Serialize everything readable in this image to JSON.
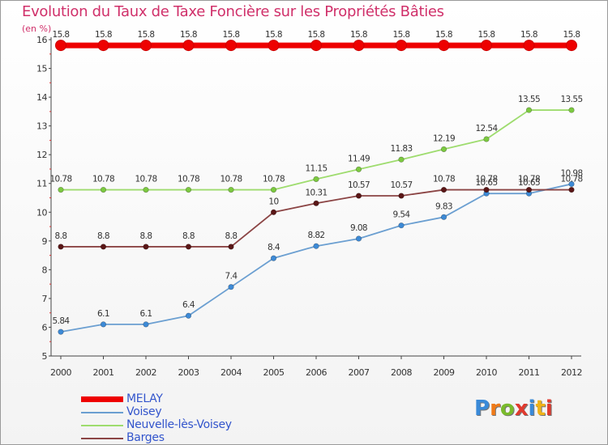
{
  "header": {
    "title": "Evolution du Taux de Taxe Foncière sur les Propriétés Bâties",
    "unit": "(en %)"
  },
  "logo": {
    "text": "Proxiti",
    "colors": [
      "#3a8ad8",
      "#f07a18",
      "#7abb2c",
      "#e03a2e",
      "#3a8ad8",
      "#f0b318",
      "#e03a2e"
    ]
  },
  "chart_data": {
    "type": "line",
    "title": "Evolution du Taux de Taxe Foncière sur les Propriétés Bâties",
    "ylabel": "(en %)",
    "xlabel": "",
    "x": [
      "2000",
      "2001",
      "2002",
      "2003",
      "2004",
      "2005",
      "2006",
      "2007",
      "2008",
      "2009",
      "2010",
      "2011",
      "2012"
    ],
    "ylim": [
      5,
      16
    ],
    "yticks": [
      "5",
      "6",
      "7",
      "8",
      "9",
      "10",
      "11",
      "12",
      "13",
      "14",
      "15",
      "16"
    ],
    "grid": false,
    "legend_position": "bottom-left",
    "series": [
      {
        "name": "MELAY",
        "color": "#ee0000",
        "marker_fill": "#ee0000",
        "bold": true,
        "values": [
          15.8,
          15.8,
          15.8,
          15.8,
          15.8,
          15.8,
          15.8,
          15.8,
          15.8,
          15.8,
          15.8,
          15.8,
          15.8
        ],
        "labels": [
          "15.8",
          "15.8",
          "15.8",
          "15.8",
          "15.8",
          "15.8",
          "15.8",
          "15.8",
          "15.8",
          "15.8",
          "15.8",
          "15.8",
          "15.8"
        ]
      },
      {
        "name": "Voisey",
        "color": "#6b9fd1",
        "marker_fill": "#3d8ad6",
        "values": [
          5.84,
          6.1,
          6.1,
          6.4,
          7.4,
          8.4,
          8.82,
          9.08,
          9.54,
          9.83,
          10.65,
          10.65,
          10.98
        ],
        "labels": [
          "5.84",
          "6.1",
          "6.1",
          "6.4",
          "7.4",
          "8.4",
          "8.82",
          "9.08",
          "9.54",
          "9.83",
          "10.65",
          "10.65",
          "10.98"
        ]
      },
      {
        "name": "Neuvelle-lès-Voisey",
        "color": "#9edc6e",
        "marker_fill": "#7cc940",
        "values": [
          10.78,
          10.78,
          10.78,
          10.78,
          10.78,
          10.78,
          11.15,
          11.49,
          11.83,
          12.19,
          12.54,
          13.55,
          13.55
        ],
        "labels": [
          "10.78",
          "10.78",
          "10.78",
          "10.78",
          "10.78",
          "10.78",
          "11.15",
          "11.49",
          "11.83",
          "12.19",
          "12.54",
          "13.55",
          "13.55"
        ]
      },
      {
        "name": "Barges",
        "color": "#8b4444",
        "marker_fill": "#5a1616",
        "values": [
          8.8,
          8.8,
          8.8,
          8.8,
          8.8,
          10,
          10.31,
          10.57,
          10.57,
          10.78,
          10.78,
          10.78,
          10.78
        ],
        "labels": [
          "8.8",
          "8.8",
          "8.8",
          "8.8",
          "8.8",
          "10",
          "10.31",
          "10.57",
          "10.57",
          "10.78",
          "10.78",
          "10.78",
          "10.78"
        ]
      }
    ]
  }
}
